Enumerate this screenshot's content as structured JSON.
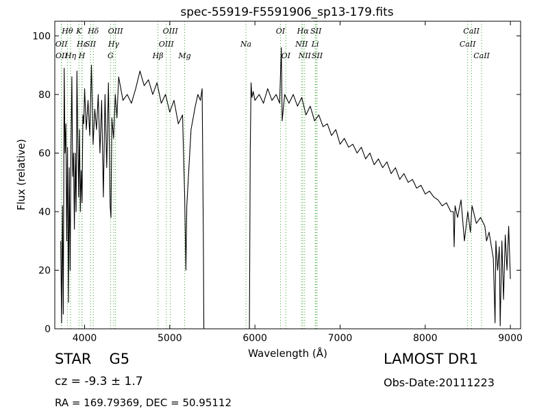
{
  "chart_data": {
    "type": "line",
    "title": "spec-55919-F5591906_sp13-179.fits",
    "xlabel": "Wavelength (Å)",
    "ylabel": "Flux (relative)",
    "xlim": [
      3650,
      9120
    ],
    "ylim": [
      0,
      105
    ],
    "xticks": [
      4000,
      5000,
      6000,
      7000,
      8000,
      9000
    ],
    "yticks": [
      0,
      20,
      40,
      60,
      80,
      100
    ],
    "line_color": "#000000",
    "marker_color": "#2ca02c",
    "series": [
      {
        "points": [
          [
            3720,
            30
          ],
          [
            3730,
            2
          ],
          [
            3740,
            42
          ],
          [
            3750,
            5
          ],
          [
            3760,
            89
          ],
          [
            3770,
            60
          ],
          [
            3780,
            70
          ],
          [
            3790,
            30
          ],
          [
            3800,
            62
          ],
          [
            3810,
            9
          ],
          [
            3820,
            55
          ],
          [
            3830,
            20
          ],
          [
            3840,
            62
          ],
          [
            3850,
            86
          ],
          [
            3860,
            52
          ],
          [
            3870,
            60
          ],
          [
            3880,
            34
          ],
          [
            3890,
            60
          ],
          [
            3900,
            40
          ],
          [
            3910,
            88
          ],
          [
            3920,
            65
          ],
          [
            3930,
            45
          ],
          [
            3940,
            68
          ],
          [
            3950,
            40
          ],
          [
            3960,
            54
          ],
          [
            3970,
            43
          ],
          [
            3980,
            73
          ],
          [
            3990,
            70
          ],
          [
            4000,
            82
          ],
          [
            4020,
            68
          ],
          [
            4040,
            78
          ],
          [
            4060,
            66
          ],
          [
            4080,
            90
          ],
          [
            4100,
            63
          ],
          [
            4120,
            75
          ],
          [
            4140,
            68
          ],
          [
            4160,
            80
          ],
          [
            4180,
            60
          ],
          [
            4200,
            78
          ],
          [
            4220,
            45
          ],
          [
            4240,
            80
          ],
          [
            4260,
            55
          ],
          [
            4280,
            84
          ],
          [
            4300,
            42
          ],
          [
            4310,
            38
          ],
          [
            4320,
            72
          ],
          [
            4340,
            65
          ],
          [
            4360,
            80
          ],
          [
            4380,
            72
          ],
          [
            4400,
            86
          ],
          [
            4450,
            78
          ],
          [
            4500,
            80
          ],
          [
            4550,
            77
          ],
          [
            4600,
            82
          ],
          [
            4650,
            88
          ],
          [
            4700,
            83
          ],
          [
            4750,
            85
          ],
          [
            4800,
            80
          ],
          [
            4850,
            84
          ],
          [
            4900,
            77
          ],
          [
            4950,
            80
          ],
          [
            5000,
            74
          ],
          [
            5050,
            78
          ],
          [
            5100,
            70
          ],
          [
            5150,
            73
          ],
          [
            5175,
            45
          ],
          [
            5190,
            20
          ],
          [
            5200,
            42
          ],
          [
            5250,
            68
          ],
          [
            5300,
            76
          ],
          [
            5330,
            80
          ],
          [
            5360,
            78
          ],
          [
            5380,
            82
          ],
          [
            5395,
            30
          ],
          [
            5400,
            0
          ],
          [
            5450,
            0
          ],
          [
            5500,
            0
          ],
          [
            5600,
            0
          ],
          [
            5700,
            0
          ],
          [
            5800,
            0
          ],
          [
            5900,
            0
          ],
          [
            5935,
            0
          ],
          [
            5945,
            60
          ],
          [
            5955,
            84
          ],
          [
            5965,
            79
          ],
          [
            5980,
            81
          ],
          [
            6000,
            78
          ],
          [
            6050,
            80
          ],
          [
            6100,
            77
          ],
          [
            6150,
            82
          ],
          [
            6200,
            78
          ],
          [
            6250,
            80
          ],
          [
            6290,
            77
          ],
          [
            6310,
            96
          ],
          [
            6320,
            71
          ],
          [
            6350,
            80
          ],
          [
            6400,
            77
          ],
          [
            6450,
            80
          ],
          [
            6500,
            76
          ],
          [
            6550,
            79
          ],
          [
            6600,
            73
          ],
          [
            6650,
            76
          ],
          [
            6700,
            71
          ],
          [
            6750,
            73
          ],
          [
            6800,
            69
          ],
          [
            6850,
            70
          ],
          [
            6900,
            66
          ],
          [
            6950,
            68
          ],
          [
            7000,
            63
          ],
          [
            7050,
            65
          ],
          [
            7100,
            62
          ],
          [
            7150,
            63
          ],
          [
            7200,
            60
          ],
          [
            7250,
            62
          ],
          [
            7300,
            58
          ],
          [
            7350,
            60
          ],
          [
            7400,
            56
          ],
          [
            7450,
            58
          ],
          [
            7500,
            55
          ],
          [
            7550,
            57
          ],
          [
            7600,
            53
          ],
          [
            7650,
            55
          ],
          [
            7700,
            51
          ],
          [
            7750,
            53
          ],
          [
            7800,
            50
          ],
          [
            7850,
            51
          ],
          [
            7900,
            48
          ],
          [
            7950,
            49
          ],
          [
            8000,
            46
          ],
          [
            8050,
            47
          ],
          [
            8100,
            45
          ],
          [
            8150,
            44
          ],
          [
            8200,
            42
          ],
          [
            8250,
            43
          ],
          [
            8300,
            40
          ],
          [
            8330,
            40
          ],
          [
            8340,
            28
          ],
          [
            8350,
            42
          ],
          [
            8380,
            38
          ],
          [
            8420,
            44
          ],
          [
            8460,
            30
          ],
          [
            8500,
            40
          ],
          [
            8530,
            33
          ],
          [
            8550,
            42
          ],
          [
            8600,
            36
          ],
          [
            8650,
            38
          ],
          [
            8700,
            35
          ],
          [
            8720,
            30
          ],
          [
            8750,
            33
          ],
          [
            8800,
            24
          ],
          [
            8820,
            2
          ],
          [
            8830,
            30
          ],
          [
            8850,
            20
          ],
          [
            8870,
            28
          ],
          [
            8880,
            1
          ],
          [
            8900,
            30
          ],
          [
            8920,
            10
          ],
          [
            8940,
            32
          ],
          [
            8960,
            20
          ],
          [
            8980,
            35
          ],
          [
            9000,
            17
          ]
        ]
      }
    ],
    "line_markers": [
      {
        "label": "Hθ",
        "x": 3798,
        "level": 0
      },
      {
        "label": "OII",
        "x": 3727,
        "level": 1
      },
      {
        "label": "OII",
        "x": 3729,
        "level": 2
      },
      {
        "label": "Hε",
        "x": 3970,
        "level": 1
      },
      {
        "label": "Hη",
        "x": 3835,
        "level": 2
      },
      {
        "label": "K",
        "x": 3934,
        "level": 0
      },
      {
        "label": "SII",
        "x": 4069,
        "level": 1
      },
      {
        "label": "H",
        "x": 3968,
        "level": 2
      },
      {
        "label": "Hδ",
        "x": 4102,
        "level": 0
      },
      {
        "label": "OIII",
        "x": 4363,
        "level": 0
      },
      {
        "label": "Hγ",
        "x": 4341,
        "level": 1
      },
      {
        "label": "G",
        "x": 4305,
        "level": 2
      },
      {
        "label": "OIII",
        "x": 5007,
        "level": 0
      },
      {
        "label": "OIII",
        "x": 4959,
        "level": 1
      },
      {
        "label": "Hβ",
        "x": 4861,
        "level": 2
      },
      {
        "label": "Mg",
        "x": 5175,
        "level": 2
      },
      {
        "label": "Na",
        "x": 5894,
        "level": 1
      },
      {
        "label": "OI",
        "x": 6300,
        "level": 0
      },
      {
        "label": "OI",
        "x": 6363,
        "level": 2
      },
      {
        "label": "Hα",
        "x": 6563,
        "level": 0
      },
      {
        "label": "SII",
        "x": 6717,
        "level": 0
      },
      {
        "label": "NII",
        "x": 6548,
        "level": 1
      },
      {
        "label": "Li",
        "x": 6708,
        "level": 1
      },
      {
        "label": "NII",
        "x": 6584,
        "level": 2
      },
      {
        "label": "SII",
        "x": 6731,
        "level": 2
      },
      {
        "label": "CaII",
        "x": 8542,
        "level": 0
      },
      {
        "label": "CaII",
        "x": 8498,
        "level": 1
      },
      {
        "label": "CaII",
        "x": 8662,
        "level": 2
      }
    ]
  },
  "info": {
    "object_class": "STAR",
    "subclass": "G5",
    "survey": "LAMOST DR1",
    "cz_text": "cz = -9.3  ± 1.7",
    "obs_date": "Obs-Date:20111223",
    "radec": "RA = 169.79369, DEC = 50.95112"
  }
}
